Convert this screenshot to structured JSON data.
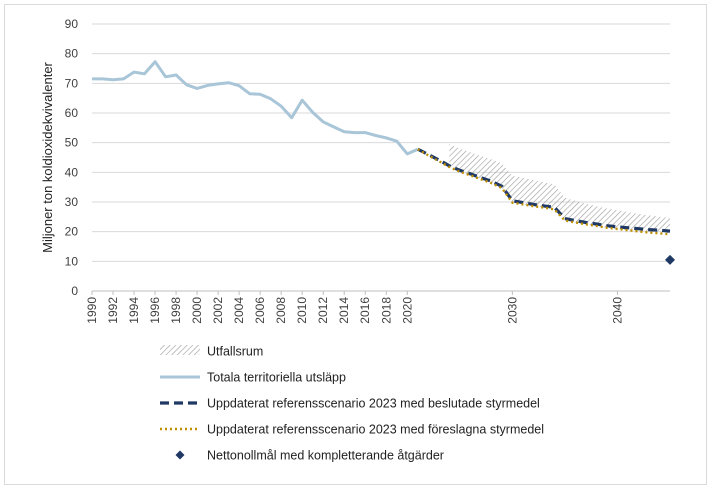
{
  "chart_data": {
    "type": "line",
    "title": "",
    "xlabel": "",
    "ylabel": "Miljoner ton koldioxidekvivalenter",
    "ylim": [
      0,
      90
    ],
    "yticks": [
      0,
      10,
      20,
      30,
      40,
      50,
      60,
      70,
      80,
      90
    ],
    "xlim": [
      1990,
      2045
    ],
    "xtick_labels_historic": [
      "1990",
      "1992",
      "1994",
      "1996",
      "1998",
      "2000",
      "2002",
      "2004",
      "2006",
      "2008",
      "2010",
      "2012",
      "2014",
      "2016",
      "2018",
      "2020"
    ],
    "xtick_labels_future": [
      "2030",
      "2040"
    ],
    "grid": true,
    "legend_position": "bottom",
    "colors": {
      "historic": "#a9c5d8",
      "reference_decided": "#1f3864",
      "reference_proposed": "#bf8f00",
      "net_zero_marker": "#1f3864",
      "range_hatch": "#a6a6a6"
    },
    "series": [
      {
        "name": "Totala territoriella utsläpp",
        "style": "solid",
        "x": [
          1990,
          1991,
          1992,
          1993,
          1994,
          1995,
          1996,
          1997,
          1998,
          1999,
          2000,
          2001,
          2002,
          2003,
          2004,
          2005,
          2006,
          2007,
          2008,
          2009,
          2010,
          2011,
          2012,
          2013,
          2014,
          2015,
          2016,
          2017,
          2018,
          2019,
          2020,
          2021
        ],
        "values": [
          71.5,
          71.5,
          71.2,
          71.5,
          73.8,
          73.2,
          77.3,
          72.2,
          72.8,
          69.5,
          68.3,
          69.3,
          69.8,
          70.2,
          69.2,
          66.5,
          66.3,
          64.8,
          62.3,
          58.4,
          64.3,
          60.2,
          57.0,
          55.3,
          53.7,
          53.4,
          53.4,
          52.4,
          51.6,
          50.5,
          46.2,
          47.8
        ]
      },
      {
        "name": "Uppdaterat referensscenario 2023 med beslutade styrmedel",
        "style": "dashed",
        "x": [
          2021,
          2022,
          2023,
          2024,
          2025,
          2026,
          2027,
          2028,
          2029,
          2030,
          2031,
          2032,
          2033,
          2034,
          2035,
          2036,
          2037,
          2038,
          2039,
          2040,
          2041,
          2042,
          2043,
          2044,
          2045
        ],
        "values": [
          47.8,
          46.0,
          44.2,
          42.2,
          40.7,
          39.5,
          38.2,
          37.0,
          35.3,
          30.4,
          29.8,
          29.2,
          28.7,
          28.2,
          24.4,
          23.7,
          23.1,
          22.6,
          22.0,
          21.6,
          21.3,
          21.0,
          20.7,
          20.5,
          20.2
        ]
      },
      {
        "name": "Uppdaterat referensscenario 2023 med föreslagna styrmedel",
        "style": "dotted",
        "x": [
          2021,
          2022,
          2023,
          2024,
          2025,
          2026,
          2027,
          2028,
          2029,
          2030,
          2031,
          2032,
          2033,
          2034,
          2035,
          2036,
          2037,
          2038,
          2039,
          2040,
          2041,
          2042,
          2043,
          2044,
          2045
        ],
        "values": [
          47.8,
          45.7,
          43.8,
          41.8,
          40.2,
          39.0,
          37.7,
          36.4,
          34.7,
          29.8,
          29.2,
          28.6,
          28.1,
          27.5,
          23.8,
          23.1,
          22.5,
          21.9,
          21.3,
          20.9,
          20.5,
          20.1,
          19.7,
          19.4,
          19.1
        ]
      }
    ],
    "range": {
      "name": "Utfallsrum",
      "x": [
        2024,
        2025,
        2026,
        2027,
        2028,
        2029,
        2030,
        2031,
        2032,
        2033,
        2034,
        2035,
        2036,
        2037,
        2038,
        2039,
        2040,
        2041,
        2042,
        2043,
        2044,
        2045
      ],
      "upper": [
        49.5,
        48.0,
        46.8,
        45.5,
        44.4,
        43.0,
        38.8,
        38.2,
        37.4,
        36.6,
        35.9,
        31.4,
        30.4,
        29.4,
        28.6,
        27.8,
        27.2,
        26.6,
        26.0,
        25.5,
        25.0,
        24.5
      ],
      "lower": [
        41.8,
        40.2,
        39.0,
        37.7,
        36.4,
        34.7,
        29.8,
        29.2,
        28.6,
        28.1,
        27.5,
        23.8,
        23.1,
        22.5,
        21.9,
        21.3,
        20.9,
        20.5,
        20.1,
        19.7,
        19.4,
        19.1
      ]
    },
    "point": {
      "name": "Nettonollmål med kompletterande åtgärder",
      "x": 2045,
      "y": 10.5
    },
    "legend": [
      {
        "key": "range",
        "label": "Utfallsrum"
      },
      {
        "key": "historic",
        "label": "Totala territoriella utsläpp"
      },
      {
        "key": "decided",
        "label": "Uppdaterat referensscenario 2023 med beslutade styrmedel"
      },
      {
        "key": "proposed",
        "label": "Uppdaterat referensscenario 2023 med föreslagna styrmedel"
      },
      {
        "key": "point",
        "label": "Nettonollmål med kompletterande åtgärder"
      }
    ]
  }
}
